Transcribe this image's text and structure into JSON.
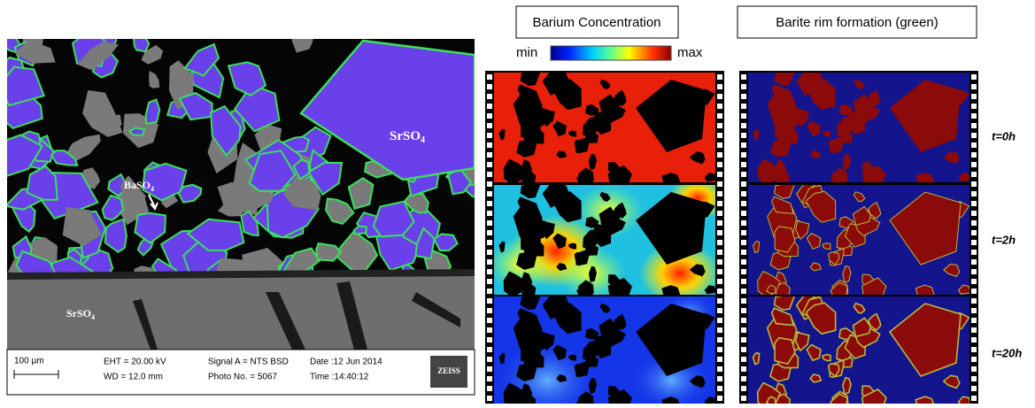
{
  "sem_image": {
    "label_large_grain": {
      "main": "SrSO",
      "sub": "4"
    },
    "label_rim": {
      "main": "BaSO",
      "sub": "4"
    },
    "label_base": {
      "main": "SrSO",
      "sub": "4"
    },
    "scale_bar": "100 µm",
    "info": [
      "EHT = 20.00 kV",
      "WD = 12.0 mm",
      "Signal A = NTS BSD",
      "Photo No. = 5067",
      "Date :12 Jun 2014",
      "Time :14:40:12"
    ],
    "brand": "ZEISS"
  },
  "concentration_panel": {
    "title": "Barium Concentration",
    "min_label": "min",
    "max_label": "max"
  },
  "rim_panel": {
    "title": "Barite rim formation (green)"
  },
  "time_labels": [
    "t=0h",
    "t=2h",
    "t=20h"
  ]
}
